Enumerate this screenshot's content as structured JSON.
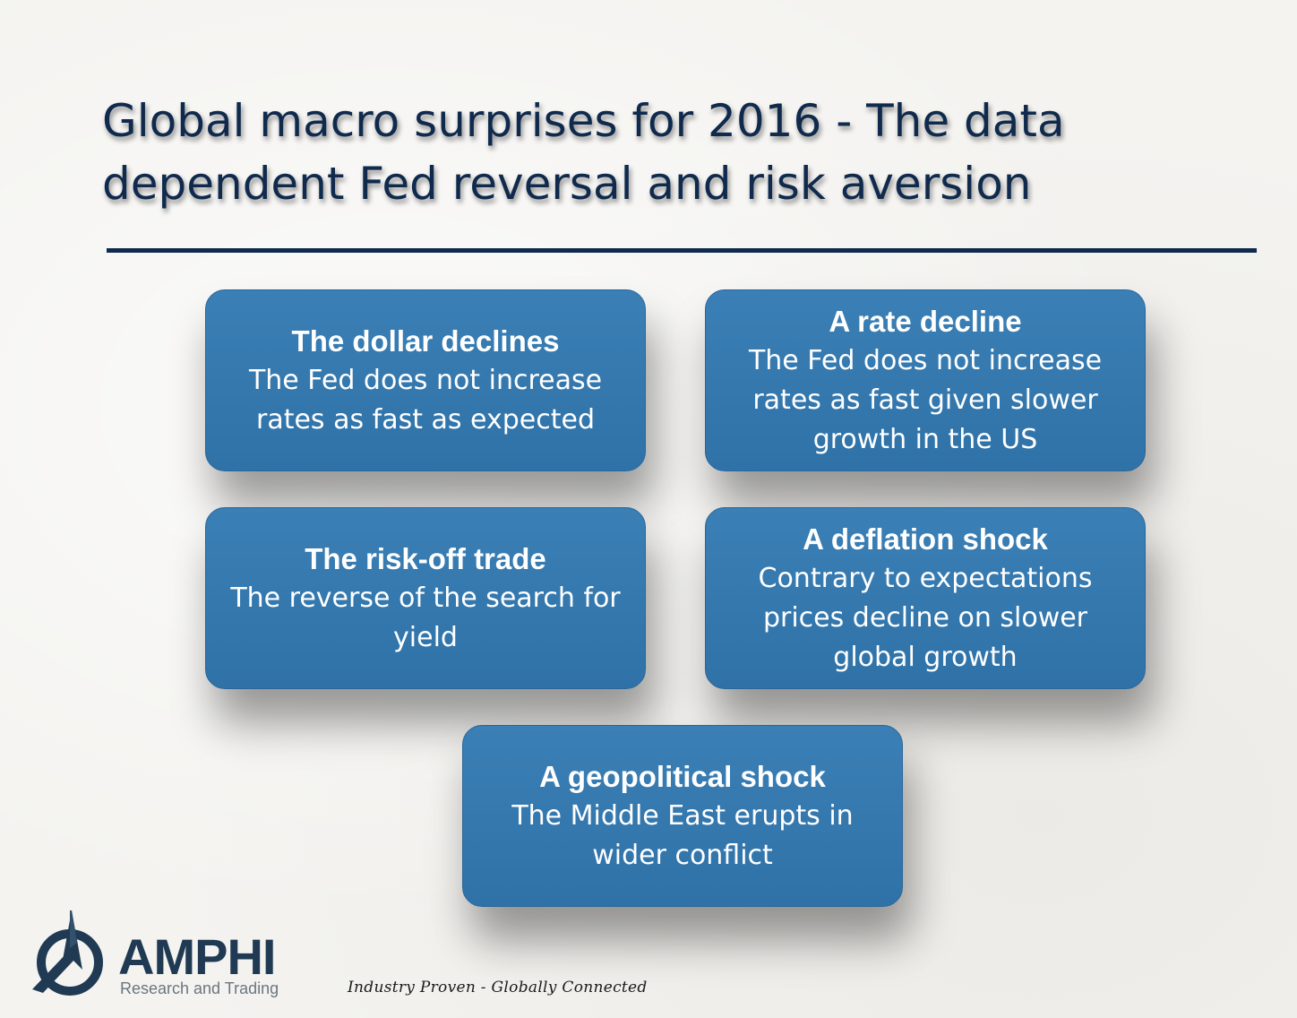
{
  "slide": {
    "title": "Global macro surprises for 2016 - The data dependent Fed reversal and risk aversion"
  },
  "boxes": [
    {
      "heading": "The dollar declines",
      "body_lines": [
        "The Fed does not increase",
        "rates as fast as expected"
      ]
    },
    {
      "heading": "A rate decline",
      "body_lines": [
        "The Fed does not increase",
        "rates as fast given slower",
        "growth in the US"
      ]
    },
    {
      "heading": "The risk-off trade",
      "body_lines": [
        "The reverse of the search for",
        "yield"
      ]
    },
    {
      "heading": "A deflation shock",
      "body_lines": [
        "Contrary to expectations",
        "prices decline on slower",
        "global growth"
      ]
    },
    {
      "heading": "A geopolitical shock",
      "body_lines": [
        "The Middle East erupts in",
        "wider conflict"
      ]
    }
  ],
  "footer": {
    "logo_name": "AMPHI",
    "logo_subtitle": "Research and Trading",
    "tagline": "Industry Proven - Globally Connected"
  },
  "colors": {
    "title": "#0f2a4d",
    "box_fill": "#3479b0",
    "box_text": "#ffffff",
    "logo": "#1f3a52"
  }
}
